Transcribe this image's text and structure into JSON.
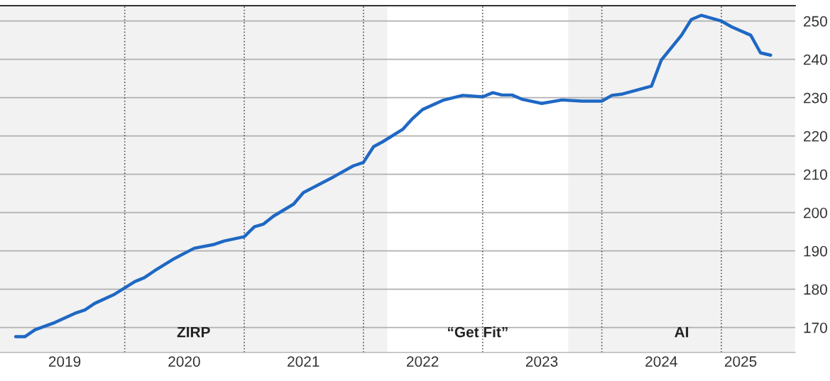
{
  "chart_data": {
    "type": "line",
    "x": [
      "2019-02",
      "2019-03",
      "2019-04",
      "2019-06",
      "2019-08",
      "2019-09",
      "2019-10",
      "2019-12",
      "2020-02",
      "2020-03",
      "2020-04",
      "2020-06",
      "2020-08",
      "2020-10",
      "2020-11",
      "2021-01",
      "2021-02",
      "2021-03",
      "2021-04",
      "2021-06",
      "2021-07",
      "2021-10",
      "2021-12",
      "2022-01",
      "2022-02",
      "2022-03",
      "2022-05",
      "2022-06",
      "2022-07",
      "2022-09",
      "2022-11",
      "2023-01",
      "2023-02",
      "2023-03",
      "2023-04",
      "2023-05",
      "2023-07",
      "2023-09",
      "2023-11",
      "2024-01",
      "2024-02",
      "2024-03",
      "2024-06",
      "2024-07",
      "2024-09",
      "2024-10",
      "2024-11",
      "2025-01",
      "2025-02",
      "2025-04",
      "2025-05",
      "2025-06"
    ],
    "series": [
      {
        "color": "#1f68c4",
        "values": [
          167.6,
          167.6,
          169.4,
          171.3,
          173.7,
          174.6,
          176.3,
          178.7,
          182.0,
          183.0,
          184.8,
          188.0,
          190.7,
          191.7,
          192.6,
          193.7,
          196.3,
          197.0,
          199.1,
          202.2,
          205.2,
          209.3,
          212.2,
          213.1,
          217.2,
          218.5,
          221.7,
          224.6,
          226.9,
          229.3,
          230.6,
          230.2,
          231.3,
          230.7,
          230.7,
          229.6,
          228.5,
          229.4,
          229.1,
          229.1,
          230.6,
          230.9,
          233.0,
          239.8,
          246.3,
          250.4,
          251.5,
          250.0,
          248.5,
          246.3,
          241.7,
          241.1
        ]
      }
    ],
    "xlim": [
      "2018-12-15",
      "2025-08-15"
    ],
    "xticks": [
      {
        "value": "2019-07-01",
        "label": "2019"
      },
      {
        "value": "2020-07-01",
        "label": "2020"
      },
      {
        "value": "2021-07-01",
        "label": "2021"
      },
      {
        "value": "2022-07-01",
        "label": "2022"
      },
      {
        "value": "2023-07-01",
        "label": "2023"
      },
      {
        "value": "2024-07-01",
        "label": "2024"
      },
      {
        "value": "2025-03-01",
        "label": "2025"
      }
    ],
    "ylim": [
      163.5,
      254
    ],
    "yticks": [
      170,
      180,
      190,
      200,
      210,
      220,
      230,
      240,
      250
    ],
    "ref_lines": [
      {
        "axis": "x",
        "value": "2020-01-01",
        "line_style": "dotted",
        "color": "#555555"
      },
      {
        "axis": "x",
        "value": "2021-01-01",
        "line_style": "dotted",
        "color": "#555555"
      },
      {
        "axis": "x",
        "value": "2022-01-01",
        "line_style": "dotted",
        "color": "#555555"
      },
      {
        "axis": "x",
        "value": "2023-01-01",
        "line_style": "dotted",
        "color": "#555555"
      },
      {
        "axis": "x",
        "value": "2024-01-01",
        "line_style": "dotted",
        "color": "#555555"
      },
      {
        "axis": "x",
        "value": "2025-01-01",
        "line_style": "dotted",
        "color": "#555555"
      }
    ],
    "bands": [
      {
        "axis": "x",
        "from": "2018-12-15",
        "to": "2022-03-15",
        "label": "ZIRP",
        "color": "#f2f2f2"
      },
      {
        "axis": "x",
        "from": "2023-09-20",
        "to": "2025-08-15",
        "label": "AI",
        "color": "#f2f2f2"
      }
    ],
    "annotations": [
      "“Get Fit”"
    ],
    "grid": "y",
    "legend": false,
    "marker": "none",
    "line_style": "solid"
  }
}
